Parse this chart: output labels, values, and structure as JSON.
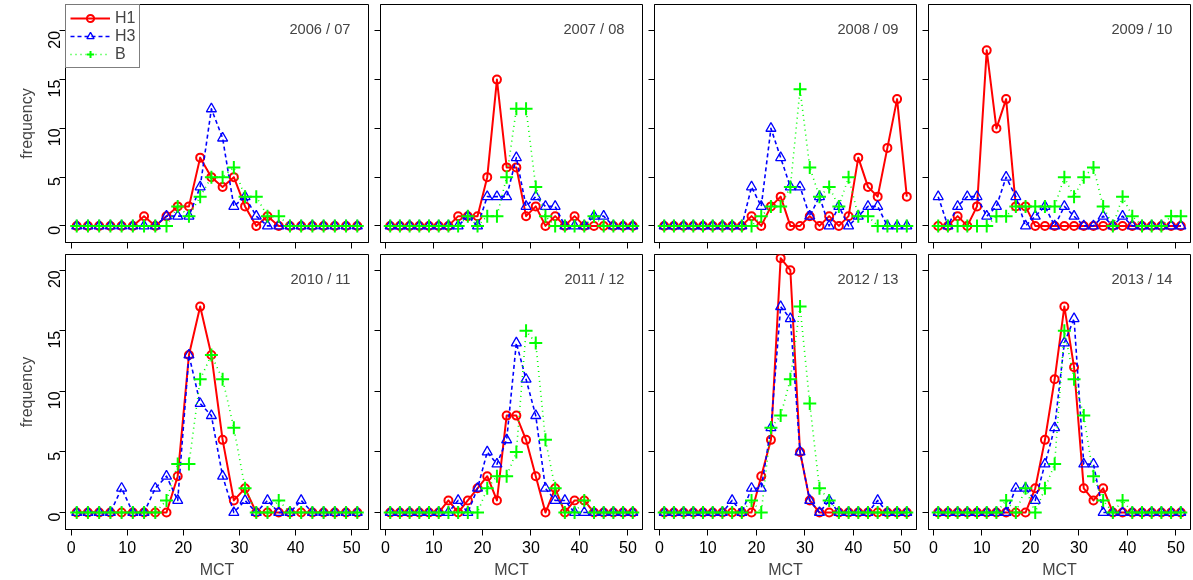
{
  "chart_data": [
    {
      "type": "line",
      "title": "2006 / 07",
      "ylabel": "frequency",
      "tick_labels": "y",
      "legend": "top left",
      "grid": false,
      "x": [
        1,
        3,
        5,
        7,
        9,
        11,
        13,
        15,
        17,
        19,
        21,
        23,
        25,
        27,
        29,
        31,
        33,
        35,
        37,
        39,
        41,
        43,
        45,
        47,
        49,
        51
      ],
      "xlim": [
        -1,
        53
      ],
      "ylim": [
        -1.7,
        22.7
      ],
      "xticks": [
        0,
        10,
        20,
        30,
        40,
        50
      ],
      "yticks": [
        0,
        5,
        10,
        15,
        20
      ],
      "series": [
        {
          "name": "H1",
          "color": "#ff0000",
          "marker": "circle",
          "line_style": "solid",
          "values": [
            0,
            0,
            0,
            0,
            0,
            0,
            1,
            0,
            1,
            2,
            2,
            7,
            5,
            4,
            5,
            2,
            0,
            1,
            0,
            0,
            0,
            0,
            0,
            0,
            0,
            0
          ]
        },
        {
          "name": "H3",
          "color": "#0000ff",
          "marker": "triangle",
          "line_style": "dashed",
          "values": [
            0,
            0,
            0,
            0,
            0,
            0,
            0,
            0,
            1,
            1,
            1,
            4,
            12,
            9,
            2,
            3,
            1,
            0,
            0,
            0,
            0,
            0,
            0,
            0,
            0,
            0
          ]
        },
        {
          "name": "B",
          "color": "#00ff00",
          "marker": "cross",
          "line_style": "dotted",
          "values": [
            0,
            0,
            0,
            0,
            0,
            0,
            0,
            0,
            0,
            2,
            1,
            3,
            5,
            5,
            6,
            3,
            3,
            1,
            1,
            0,
            0,
            0,
            0,
            0,
            0,
            0
          ]
        }
      ]
    },
    {
      "type": "line",
      "title": "2007 / 08",
      "tick_labels": false,
      "grid": false,
      "x": [
        1,
        3,
        5,
        7,
        9,
        11,
        13,
        15,
        17,
        19,
        21,
        23,
        25,
        27,
        29,
        31,
        33,
        35,
        37,
        39,
        41,
        43,
        45,
        47,
        49,
        51
      ],
      "xlim": [
        -1,
        53
      ],
      "ylim": [
        -1.7,
        22.7
      ],
      "xticks": [
        0,
        10,
        20,
        30,
        40,
        50
      ],
      "yticks": [
        0,
        5,
        10,
        15,
        20
      ],
      "series": [
        {
          "color": "#ff0000",
          "marker": "circle",
          "line_style": "solid",
          "values": [
            0,
            0,
            0,
            0,
            0,
            0,
            0,
            1,
            1,
            1,
            5,
            15,
            6,
            6,
            1,
            2,
            0,
            1,
            0,
            1,
            0,
            0,
            0,
            0,
            0,
            0
          ]
        },
        {
          "color": "#0000ff",
          "marker": "triangle",
          "line_style": "dashed",
          "values": [
            0,
            0,
            0,
            0,
            0,
            0,
            0,
            0,
            1,
            0,
            3,
            3,
            3,
            7,
            2,
            3,
            2,
            2,
            0,
            0,
            0,
            1,
            1,
            0,
            0,
            0
          ]
        },
        {
          "color": "#00ff00",
          "marker": "cross",
          "line_style": "dotted",
          "values": [
            0,
            0,
            0,
            0,
            0,
            0,
            0,
            0,
            1,
            0,
            1,
            1,
            5,
            12,
            12,
            4,
            1,
            0,
            0,
            0,
            0,
            1,
            0,
            0,
            0,
            0
          ]
        }
      ]
    },
    {
      "type": "line",
      "title": "2008 / 09",
      "tick_labels": false,
      "grid": false,
      "x": [
        1,
        3,
        5,
        7,
        9,
        11,
        13,
        15,
        17,
        19,
        21,
        23,
        25,
        27,
        29,
        31,
        33,
        35,
        37,
        39,
        41,
        43,
        45,
        47,
        49,
        51
      ],
      "xlim": [
        -1,
        53
      ],
      "ylim": [
        -1.7,
        22.7
      ],
      "xticks": [
        0,
        10,
        20,
        30,
        40,
        50
      ],
      "yticks": [
        0,
        5,
        10,
        15,
        20
      ],
      "series": [
        {
          "color": "#ff0000",
          "marker": "circle",
          "line_style": "solid",
          "values": [
            0,
            0,
            0,
            0,
            0,
            0,
            0,
            0,
            0,
            1,
            0,
            2,
            3,
            0,
            0,
            1,
            0,
            1,
            0,
            1,
            7,
            4,
            3,
            8,
            13,
            3
          ]
        },
        {
          "color": "#0000ff",
          "marker": "triangle",
          "line_style": "dashed",
          "values": [
            0,
            0,
            0,
            0,
            0,
            0,
            0,
            0,
            0,
            4,
            2,
            10,
            7,
            4,
            4,
            1,
            3,
            0,
            2,
            0,
            1,
            2,
            2,
            0,
            0,
            0
          ]
        },
        {
          "color": "#00ff00",
          "marker": "cross",
          "line_style": "dotted",
          "values": [
            0,
            0,
            0,
            0,
            0,
            0,
            0,
            0,
            0,
            0,
            1,
            2,
            2,
            4,
            14,
            6,
            3,
            4,
            2,
            5,
            1,
            1,
            0,
            0,
            0,
            0
          ]
        }
      ]
    },
    {
      "type": "line",
      "title": "2009 / 10",
      "tick_labels": false,
      "grid": false,
      "x": [
        1,
        3,
        5,
        7,
        9,
        11,
        13,
        15,
        17,
        19,
        21,
        23,
        25,
        27,
        29,
        31,
        33,
        35,
        37,
        39,
        41,
        43,
        45,
        47,
        49,
        51
      ],
      "xlim": [
        -1,
        53
      ],
      "ylim": [
        -1.7,
        22.7
      ],
      "xticks": [
        0,
        10,
        20,
        30,
        40,
        50
      ],
      "yticks": [
        0,
        5,
        10,
        15,
        20
      ],
      "series": [
        {
          "color": "#ff0000",
          "marker": "circle",
          "line_style": "solid",
          "values": [
            0,
            0,
            1,
            0,
            2,
            18,
            10,
            13,
            2,
            2,
            0,
            0,
            0,
            0,
            0,
            0,
            0,
            0,
            0,
            0,
            0,
            0,
            0,
            0,
            0,
            0
          ]
        },
        {
          "color": "#0000ff",
          "marker": "triangle",
          "line_style": "dashed",
          "values": [
            3,
            0,
            2,
            3,
            3,
            1,
            2,
            5,
            3,
            0,
            1,
            2,
            0,
            2,
            1,
            0,
            0,
            1,
            0,
            1,
            0,
            0,
            0,
            0,
            0,
            0
          ]
        },
        {
          "color": "#00ff00",
          "marker": "cross",
          "line_style": "dotted",
          "values": [
            0,
            0,
            0,
            0,
            0,
            0,
            1,
            1,
            2,
            2,
            2,
            2,
            2,
            5,
            3,
            5,
            6,
            2,
            0,
            3,
            1,
            0,
            0,
            0,
            1,
            1
          ]
        }
      ]
    },
    {
      "type": "line",
      "title": "2010 / 11",
      "xlabel": "MCT",
      "ylabel": "frequency",
      "grid": false,
      "x": [
        1,
        3,
        5,
        7,
        9,
        11,
        13,
        15,
        17,
        19,
        21,
        23,
        25,
        27,
        29,
        31,
        33,
        35,
        37,
        39,
        41,
        43,
        45,
        47,
        49,
        51
      ],
      "xlim": [
        -1,
        53
      ],
      "ylim": [
        -1.4,
        21.3
      ],
      "xticks": [
        0,
        10,
        20,
        30,
        40,
        50
      ],
      "yticks": [
        0,
        5,
        10,
        15,
        20
      ],
      "series": [
        {
          "color": "#ff0000",
          "marker": "circle",
          "line_style": "solid",
          "values": [
            0,
            0,
            0,
            0,
            0,
            0,
            0,
            0,
            0,
            3,
            13,
            17,
            13,
            6,
            1,
            2,
            0,
            0,
            0,
            0,
            0,
            0,
            0,
            0,
            0,
            0
          ]
        },
        {
          "color": "#0000ff",
          "marker": "triangle",
          "line_style": "dashed",
          "values": [
            0,
            0,
            0,
            0,
            2,
            0,
            0,
            2,
            3,
            1,
            13,
            9,
            8,
            3,
            0,
            1,
            0,
            1,
            0,
            0,
            1,
            0,
            0,
            0,
            0,
            0
          ]
        },
        {
          "color": "#00ff00",
          "marker": "cross",
          "line_style": "dotted",
          "values": [
            0,
            0,
            0,
            0,
            0,
            0,
            0,
            0,
            1,
            4,
            4,
            11,
            13,
            11,
            7,
            2,
            0,
            0,
            1,
            0,
            0,
            0,
            0,
            0,
            0,
            0
          ]
        }
      ]
    },
    {
      "type": "line",
      "title": "2011 / 12",
      "xlabel": "MCT",
      "tick_labels": "x",
      "grid": false,
      "x": [
        1,
        3,
        5,
        7,
        9,
        11,
        13,
        15,
        17,
        19,
        21,
        23,
        25,
        27,
        29,
        31,
        33,
        35,
        37,
        39,
        41,
        43,
        45,
        47,
        49,
        51
      ],
      "xlim": [
        -1,
        53
      ],
      "ylim": [
        -1.4,
        21.3
      ],
      "xticks": [
        0,
        10,
        20,
        30,
        40,
        50
      ],
      "yticks": [
        0,
        5,
        10,
        15,
        20
      ],
      "series": [
        {
          "color": "#ff0000",
          "marker": "circle",
          "line_style": "solid",
          "values": [
            0,
            0,
            0,
            0,
            0,
            0,
            1,
            0,
            1,
            2,
            3,
            1,
            8,
            8,
            6,
            3,
            0,
            2,
            0,
            1,
            1,
            0,
            0,
            0,
            0,
            0
          ]
        },
        {
          "color": "#0000ff",
          "marker": "triangle",
          "line_style": "dashed",
          "values": [
            0,
            0,
            0,
            0,
            0,
            0,
            0,
            1,
            0,
            2,
            5,
            4,
            6,
            14,
            11,
            8,
            2,
            1,
            1,
            0,
            0,
            0,
            0,
            0,
            0,
            0
          ]
        },
        {
          "color": "#00ff00",
          "marker": "cross",
          "line_style": "dotted",
          "values": [
            0,
            0,
            0,
            0,
            0,
            0,
            0,
            0,
            0,
            0,
            2,
            3,
            3,
            5,
            15,
            14,
            6,
            2,
            0,
            0,
            1,
            0,
            0,
            0,
            0,
            0
          ]
        }
      ]
    },
    {
      "type": "line",
      "title": "2012 / 13",
      "xlabel": "MCT",
      "tick_labels": "x",
      "grid": false,
      "x": [
        1,
        3,
        5,
        7,
        9,
        11,
        13,
        15,
        17,
        19,
        21,
        23,
        25,
        27,
        29,
        31,
        33,
        35,
        37,
        39,
        41,
        43,
        45,
        47,
        49,
        51
      ],
      "xlim": [
        -1,
        53
      ],
      "ylim": [
        -1.4,
        21.3
      ],
      "xticks": [
        0,
        10,
        20,
        30,
        40,
        50
      ],
      "yticks": [
        0,
        5,
        10,
        15,
        20
      ],
      "series": [
        {
          "color": "#ff0000",
          "marker": "circle",
          "line_style": "solid",
          "values": [
            0,
            0,
            0,
            0,
            0,
            0,
            0,
            0,
            0,
            0,
            3,
            6,
            21,
            20,
            5,
            1,
            0,
            0,
            0,
            0,
            0,
            0,
            0,
            0,
            0,
            0
          ]
        },
        {
          "color": "#0000ff",
          "marker": "triangle",
          "line_style": "dashed",
          "values": [
            0,
            0,
            0,
            0,
            0,
            0,
            0,
            1,
            0,
            2,
            2,
            7,
            17,
            16,
            5,
            1,
            0,
            1,
            0,
            0,
            0,
            0,
            1,
            0,
            0,
            0
          ]
        },
        {
          "color": "#00ff00",
          "marker": "cross",
          "line_style": "dotted",
          "values": [
            0,
            0,
            0,
            0,
            0,
            0,
            0,
            0,
            0,
            1,
            0,
            7,
            8,
            11,
            17,
            9,
            2,
            1,
            0,
            0,
            0,
            0,
            0,
            0,
            0,
            0
          ]
        }
      ]
    },
    {
      "type": "line",
      "title": "2013 / 14",
      "xlabel": "MCT",
      "tick_labels": "x",
      "grid": false,
      "x": [
        1,
        3,
        5,
        7,
        9,
        11,
        13,
        15,
        17,
        19,
        21,
        23,
        25,
        27,
        29,
        31,
        33,
        35,
        37,
        39,
        41,
        43,
        45,
        47,
        49,
        51
      ],
      "xlim": [
        -1,
        53
      ],
      "ylim": [
        -1.4,
        21.3
      ],
      "xticks": [
        0,
        10,
        20,
        30,
        40,
        50
      ],
      "yticks": [
        0,
        5,
        10,
        15,
        20
      ],
      "series": [
        {
          "color": "#ff0000",
          "marker": "circle",
          "line_style": "solid",
          "values": [
            0,
            0,
            0,
            0,
            0,
            0,
            0,
            0,
            0,
            0,
            2,
            6,
            11,
            17,
            12,
            2,
            1,
            2,
            0,
            0,
            0,
            0,
            0,
            0,
            0,
            0
          ]
        },
        {
          "color": "#0000ff",
          "marker": "triangle",
          "line_style": "dashed",
          "values": [
            0,
            0,
            0,
            0,
            0,
            0,
            0,
            0,
            2,
            2,
            1,
            4,
            7,
            14,
            16,
            4,
            4,
            0,
            0,
            0,
            0,
            0,
            0,
            0,
            0,
            0
          ]
        },
        {
          "color": "#00ff00",
          "marker": "cross",
          "line_style": "dotted",
          "values": [
            0,
            0,
            0,
            0,
            0,
            0,
            0,
            1,
            0,
            2,
            0,
            2,
            4,
            15,
            11,
            8,
            3,
            1,
            0,
            1,
            0,
            0,
            0,
            0,
            0,
            0
          ]
        }
      ]
    }
  ]
}
